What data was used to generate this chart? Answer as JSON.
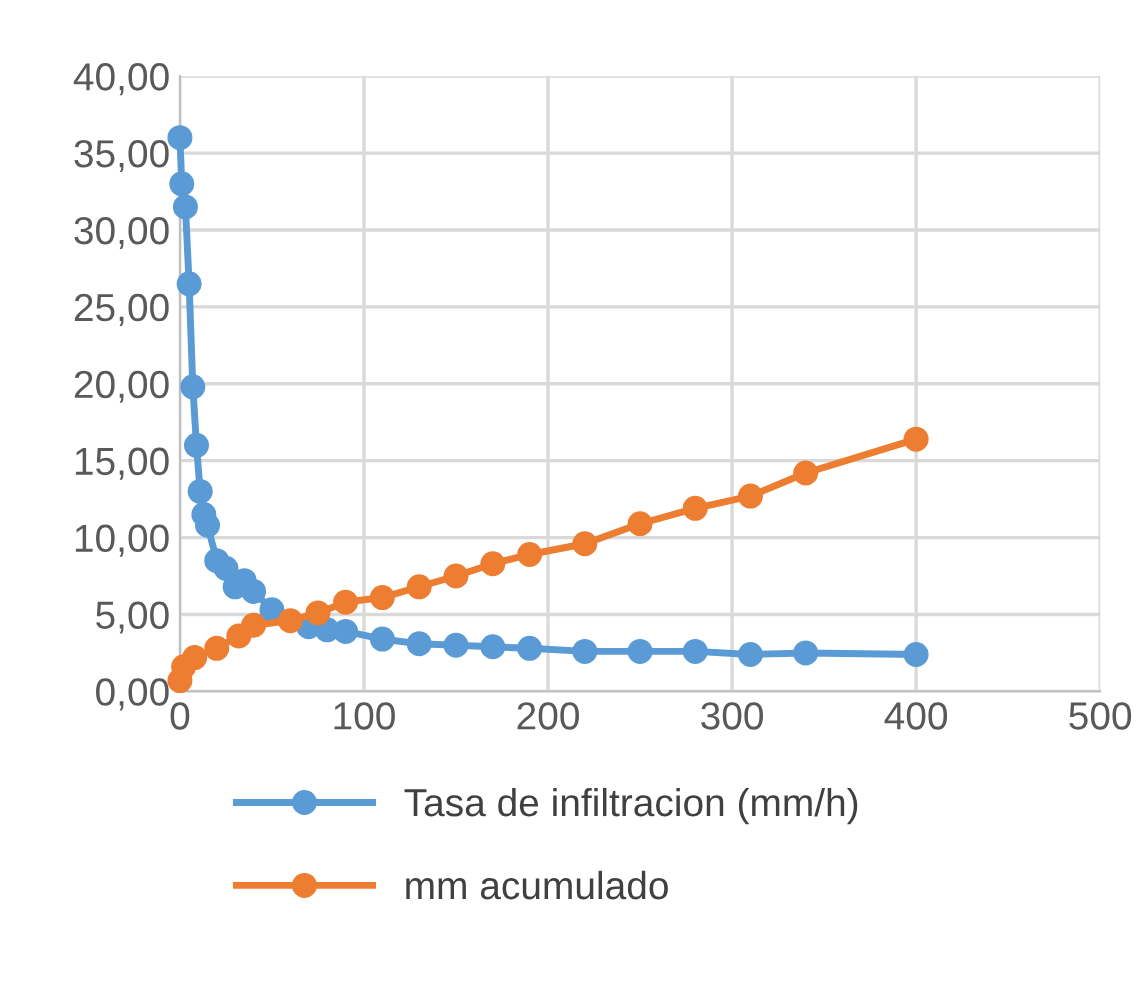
{
  "chart_data": {
    "type": "line",
    "line_style": "solid",
    "marker": "circle",
    "grid": true,
    "legend": "bottom",
    "xlim": [
      0,
      500
    ],
    "xticks": [
      0,
      100,
      200,
      300,
      400,
      500
    ],
    "ylim": [
      0,
      40
    ],
    "yticks": [
      {
        "value": 0,
        "label": "0,00"
      },
      {
        "value": 5,
        "label": "5,00"
      },
      {
        "value": 10,
        "label": "10,00"
      },
      {
        "value": 15,
        "label": "15,00"
      },
      {
        "value": 20,
        "label": "20,00"
      },
      {
        "value": 25,
        "label": "25,00"
      },
      {
        "value": 30,
        "label": "30,00"
      },
      {
        "value": 35,
        "label": "35,00"
      },
      {
        "value": 40,
        "label": "40,00"
      }
    ],
    "series": [
      {
        "name": "Tasa de infiltracion (mm/h)",
        "color": "#5b9bd5",
        "x": [
          0,
          1,
          3,
          5,
          7,
          9,
          11,
          13,
          15,
          20,
          25,
          30,
          35,
          40,
          50,
          70,
          80,
          90,
          110,
          130,
          150,
          170,
          190,
          220,
          250,
          280,
          310,
          340,
          400
        ],
        "values": [
          36,
          33,
          31.5,
          26.5,
          19.8,
          16,
          13,
          11.5,
          10.8,
          8.5,
          8,
          6.8,
          7.2,
          6.5,
          5.3,
          4.2,
          4.0,
          3.9,
          3.4,
          3.1,
          3.0,
          2.9,
          2.8,
          2.6,
          2.6,
          2.6,
          2.4,
          2.5,
          2.4
        ]
      },
      {
        "name": "mm acumulado",
        "color": "#ed7d31",
        "x": [
          0,
          2,
          8,
          20,
          32,
          40,
          60,
          75,
          90,
          110,
          130,
          150,
          170,
          190,
          220,
          250,
          280,
          310,
          340,
          400
        ],
        "values": [
          0.7,
          1.6,
          2.2,
          2.8,
          3.6,
          4.3,
          4.6,
          5.1,
          5.8,
          6.1,
          6.8,
          7.5,
          8.3,
          8.9,
          9.6,
          10.9,
          11.9,
          12.7,
          14.2,
          16.4
        ]
      }
    ]
  }
}
